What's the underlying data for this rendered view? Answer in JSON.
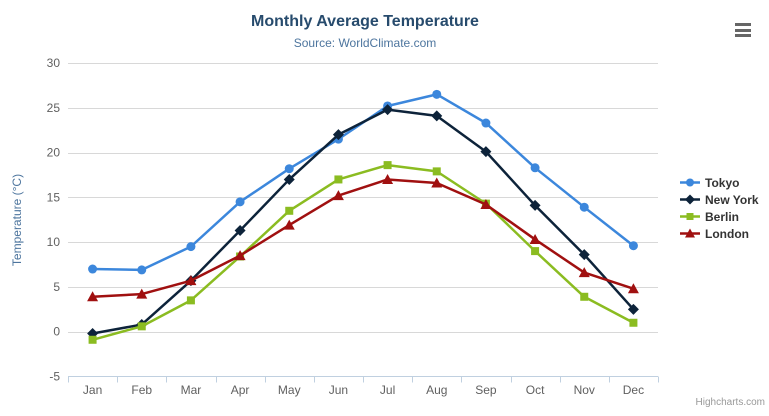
{
  "header": {
    "title": "Monthly Average Temperature",
    "subtitle": "Source: WorldClimate.com"
  },
  "credits": {
    "label": "Highcharts.com"
  },
  "chart_data": {
    "type": "line",
    "title": "Monthly Average Temperature",
    "subtitle": "Source: WorldClimate.com",
    "xlabel": "",
    "ylabel": "Temperature (°C)",
    "ylim": [
      -5,
      30
    ],
    "ytick_step": 5,
    "grid": true,
    "legend_position": "right",
    "categories": [
      "Jan",
      "Feb",
      "Mar",
      "Apr",
      "May",
      "Jun",
      "Jul",
      "Aug",
      "Sep",
      "Oct",
      "Nov",
      "Dec"
    ],
    "series": [
      {
        "name": "Tokyo",
        "color": "#3c87dc",
        "marker": "circle",
        "values": [
          7.0,
          6.9,
          9.5,
          14.5,
          18.2,
          21.5,
          25.2,
          26.5,
          23.3,
          18.3,
          13.9,
          9.6
        ]
      },
      {
        "name": "New York",
        "color": "#0d233a",
        "marker": "diamond",
        "values": [
          -0.2,
          0.8,
          5.7,
          11.3,
          17.0,
          22.0,
          24.8,
          24.1,
          20.1,
          14.1,
          8.6,
          2.5
        ]
      },
      {
        "name": "Berlin",
        "color": "#8bbc21",
        "marker": "square",
        "values": [
          -0.9,
          0.6,
          3.5,
          8.4,
          13.5,
          17.0,
          18.6,
          17.9,
          14.3,
          9.0,
          3.9,
          1.0
        ]
      },
      {
        "name": "London",
        "color": "#a01010",
        "marker": "triangle",
        "values": [
          3.9,
          4.2,
          5.7,
          8.5,
          11.9,
          15.2,
          17.0,
          16.6,
          14.2,
          10.3,
          6.6,
          4.8
        ]
      }
    ]
  },
  "theme": {
    "background": "#ffffff",
    "title_color": "#274b6d",
    "subtitle_color": "#4d759e",
    "axis_title_color": "#4d759e",
    "axis_label_color": "#606060",
    "grid_color": "#d8d8d8",
    "axis_line_color": "#c0d0e0",
    "legend_text_color": "#333333",
    "credits_color": "#999999",
    "menu_icon_color": "#666666"
  }
}
